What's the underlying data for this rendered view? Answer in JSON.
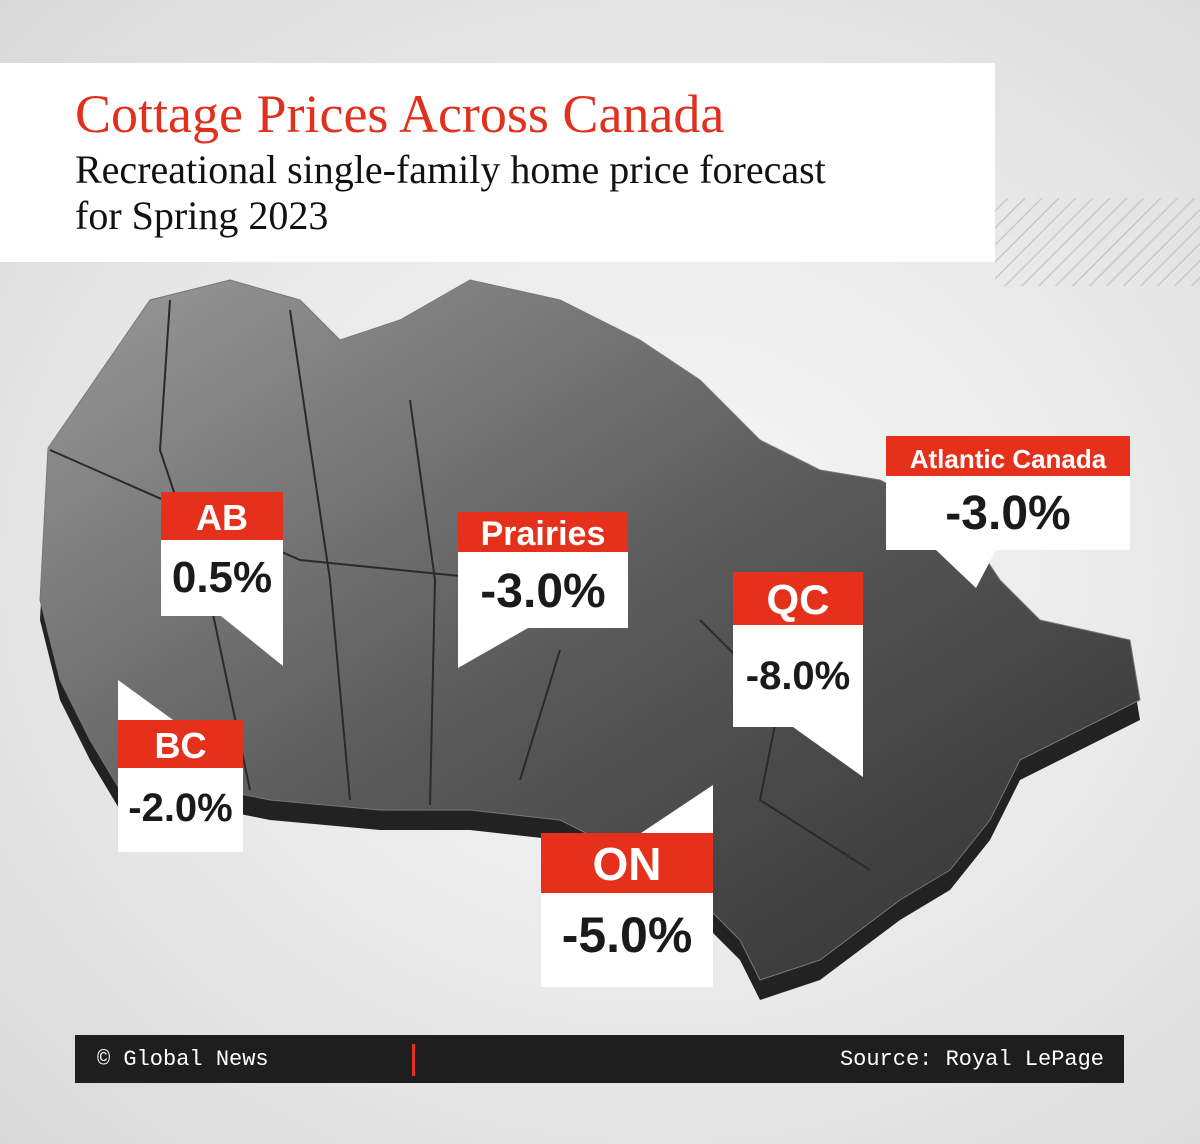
{
  "header": {
    "title": "Cottage Prices Across Canada",
    "subtitle": "Recreational single-family home price forecast for Spring 2023"
  },
  "regions": [
    {
      "label": "AB",
      "value": "0.5%"
    },
    {
      "label": "BC",
      "value": "-2.0%"
    },
    {
      "label": "Prairies",
      "value": "-3.0%"
    },
    {
      "label": "QC",
      "value": "-8.0%"
    },
    {
      "label": "ON",
      "value": "-5.0%"
    },
    {
      "label": "Atlantic Canada",
      "value": "-3.0%"
    }
  ],
  "footer": {
    "credit": "© Global News",
    "source": "Source: Royal LePage"
  }
}
